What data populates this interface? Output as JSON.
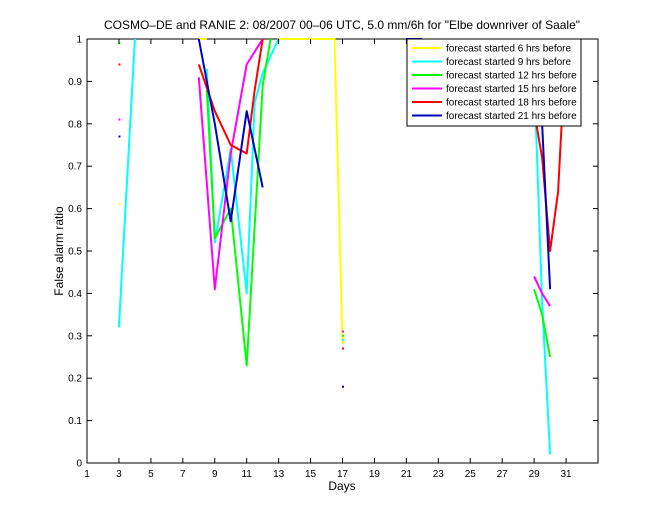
{
  "chart_data": {
    "type": "line",
    "title": "COSMO–DE and RANIE 2: 08/2007 00–06 UTC, 5.0 mm/6h for \"Elbe downriver of Saale\"",
    "xlabel": "Days",
    "ylabel": "False alarm ratio",
    "xlim": [
      1,
      33
    ],
    "ylim": [
      0,
      1
    ],
    "xticks": [
      1,
      3,
      5,
      7,
      9,
      11,
      13,
      15,
      17,
      19,
      21,
      23,
      25,
      27,
      29,
      31
    ],
    "yticks": [
      0,
      0.1,
      0.2,
      0.3,
      0.4,
      0.5,
      0.6,
      0.7,
      0.8,
      0.9,
      1
    ],
    "ytick_labels": [
      "0",
      "0.1",
      "0.2",
      "0.3",
      "0.4",
      "0.5",
      "0.6",
      "0.7",
      "0.8",
      "0.9",
      "1"
    ],
    "grid": false,
    "legend_position": "top-right",
    "series": [
      {
        "name": "forecast started 6 hrs before",
        "color": "#ffff00",
        "segments": [
          [
            [
              3,
              0.61
            ]
          ],
          [
            [
              8,
              1.0
            ],
            [
              8.5,
              1.0
            ]
          ],
          [
            [
              13,
              1.0
            ],
            [
              14,
              1.0
            ],
            [
              15,
              1.0
            ],
            [
              16,
              1.0
            ],
            [
              16.5,
              1.0
            ],
            [
              17,
              0.28
            ]
          ]
        ]
      },
      {
        "name": "forecast started 9 hrs before",
        "color": "#00ffff",
        "segments": [
          [
            [
              3,
              0.32
            ],
            [
              4,
              1.0
            ]
          ],
          [
            [
              8.5,
              0.93
            ],
            [
              9,
              0.52
            ],
            [
              10,
              0.74
            ],
            [
              11,
              0.4
            ],
            [
              11.5,
              0.85
            ],
            [
              12,
              0.92
            ],
            [
              13,
              1.0
            ]
          ],
          [
            [
              17,
              0.29
            ]
          ],
          [
            [
              29,
              0.92
            ],
            [
              29.5,
              0.38
            ],
            [
              30,
              0.02
            ]
          ]
        ]
      },
      {
        "name": "forecast started 12 hrs before",
        "color": "#00ff00",
        "segments": [
          [
            [
              3,
              0.99
            ]
          ],
          [
            [
              8.5,
              0.88
            ],
            [
              9,
              0.53
            ],
            [
              10,
              0.6
            ],
            [
              11,
              0.23
            ],
            [
              12,
              0.89
            ],
            [
              12.5,
              1.0
            ]
          ],
          [
            [
              17,
              0.3
            ]
          ],
          [
            [
              29,
              0.41
            ],
            [
              29.5,
              0.35
            ],
            [
              30,
              0.25
            ]
          ]
        ]
      },
      {
        "name": "forecast started 15 hrs before",
        "color": "#ff00ff",
        "segments": [
          [
            [
              3,
              0.81
            ]
          ],
          [
            [
              8,
              0.91
            ],
            [
              9,
              0.41
            ],
            [
              10,
              0.73
            ],
            [
              11,
              0.94
            ],
            [
              12,
              1.0
            ]
          ],
          [
            [
              17,
              0.31
            ]
          ],
          [
            [
              29,
              0.44
            ],
            [
              29.5,
              0.4
            ],
            [
              30,
              0.37
            ]
          ]
        ]
      },
      {
        "name": "forecast started 18 hrs before",
        "color": "#ff0000",
        "segments": [
          [
            [
              3,
              0.94
            ]
          ],
          [
            [
              8,
              0.94
            ],
            [
              9,
              0.83
            ],
            [
              10,
              0.75
            ],
            [
              11,
              0.73
            ],
            [
              11.5,
              0.88
            ],
            [
              12,
              1.0
            ]
          ],
          [
            [
              17,
              0.27
            ]
          ],
          [
            [
              29,
              0.83
            ],
            [
              29.5,
              0.72
            ],
            [
              30,
              0.5
            ],
            [
              30.5,
              0.64
            ],
            [
              31,
              1.0
            ]
          ]
        ]
      },
      {
        "name": "forecast started 21 hrs before",
        "color": "#0000c0",
        "segments": [
          [
            [
              3,
              0.77
            ]
          ],
          [
            [
              8,
              1.0
            ],
            [
              9,
              0.8
            ],
            [
              10,
              0.57
            ],
            [
              11,
              0.83
            ],
            [
              12,
              0.65
            ]
          ],
          [
            [
              17,
              0.18
            ]
          ],
          [
            [
              21,
              1.0
            ],
            [
              22,
              1.0
            ]
          ],
          [
            [
              29,
              0.99
            ],
            [
              29.5,
              0.8
            ],
            [
              30,
              0.41
            ]
          ]
        ]
      }
    ]
  }
}
